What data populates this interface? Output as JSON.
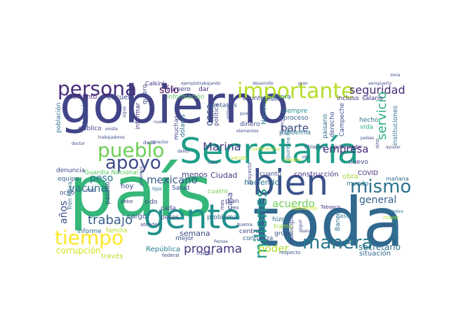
{
  "image": "word cloud",
  "words": [
    {
      "text": "gobierno",
      "color": "#414487"
    },
    {
      "text": "toda",
      "color": "#31688e"
    },
    {
      "text": "país",
      "color": "#35b779"
    },
    {
      "text": "Secretaría",
      "color": "#1f9e89"
    },
    {
      "text": "gente",
      "color": "#21918c"
    },
    {
      "text": "bien",
      "color": "#3b528b"
    },
    {
      "text": "pueblo",
      "color": "#6ece58"
    },
    {
      "text": "importante",
      "color": "#b5de2b"
    },
    {
      "text": "persona",
      "color": "#472c7a"
    },
    {
      "text": "tiempo",
      "color": "#fde725"
    },
    {
      "text": "apoyo",
      "color": "#3e4a89"
    },
    {
      "text": "mismo",
      "color": "#2c728e"
    },
    {
      "text": "manera",
      "color": "#2a788e"
    },
    {
      "text": "millones",
      "color": "#1f9a8a"
    },
    {
      "text": "seguridad",
      "color": "#472d7b"
    },
    {
      "text": "servicio",
      "color": "#26ad81"
    },
    {
      "text": "programa",
      "color": "#46337e"
    },
    {
      "text": "mexicano",
      "color": "#38588c"
    },
    {
      "text": "trabajo",
      "color": "#355f8d"
    },
    {
      "text": "Marina",
      "color": "#433d84"
    },
    {
      "text": "vacuna",
      "color": "#2d718e"
    },
    {
      "text": "empresa",
      "color": "#472a7a"
    },
    {
      "text": "parte",
      "color": "#3e4989"
    },
    {
      "text": "general",
      "color": "#355e8d"
    },
    {
      "text": "acuerdo",
      "color": "#6ccd5a"
    },
    {
      "text": "poder",
      "color": "#b0dd2f"
    },
    {
      "text": "secretario",
      "color": "#2e6f8e"
    },
    {
      "text": "sólo",
      "color": "#440154"
    },
    {
      "text": "cosa",
      "color": "#3b528b"
    },
    {
      "text": "peso",
      "color": "#2c738e"
    },
    {
      "text": "años",
      "color": "#3e4a89"
    },
    {
      "text": "corrupción",
      "color": "#d2e21b"
    },
    {
      "text": "República",
      "color": "#287c8e"
    },
    {
      "text": "haciendo",
      "color": "#2b758e"
    },
    {
      "text": "Ciudad",
      "color": "#443a83"
    },
    {
      "text": "casa",
      "color": "#3f4788"
    },
    {
      "text": "semana",
      "color": "#3d4d8a"
    },
    {
      "text": "menos",
      "color": "#404688"
    },
    {
      "text": "hoy",
      "color": "#3f4788"
    },
    {
      "text": "escuela",
      "color": "#3f4889"
    },
    {
      "text": "momento",
      "color": "#482475"
    },
    {
      "text": "información",
      "color": "#5ec962"
    },
    {
      "text": "construcción",
      "color": "#453781"
    },
    {
      "text": "COVID",
      "color": "#472f7d"
    },
    {
      "text": "situación",
      "color": "#31688e"
    },
    {
      "text": "cargo",
      "color": "#3a548c"
    },
    {
      "text": "través",
      "color": "#b8de29"
    },
    {
      "text": "mañana",
      "color": "#31688e"
    },
    {
      "text": "obra",
      "color": "#a2da37"
    },
    {
      "text": "nuevo",
      "color": "#404588"
    },
    {
      "text": "mundo",
      "color": "#29798e"
    },
    {
      "text": "hizo",
      "color": "#2e6e8e"
    },
    {
      "text": "tramo",
      "color": "#9fda3a"
    },
    {
      "text": "grupo",
      "color": "#3b528b"
    },
    {
      "text": "proceso",
      "color": "#355e8d"
    },
    {
      "text": "siempre",
      "color": "#238a8d"
    },
    {
      "text": "pandemia",
      "color": "#2a768e"
    },
    {
      "text": "Sonora",
      "color": "#2c718e"
    },
    {
      "text": "dinero",
      "color": "#3e4c8a"
    },
    {
      "text": "incluso",
      "color": "#453882"
    },
    {
      "text": "salario",
      "color": "#46307e"
    },
    {
      "text": "asunto",
      "color": "#3f4889"
    },
    {
      "text": "centavos",
      "color": "#38598c"
    },
    {
      "text": "dar",
      "color": "#46307e"
    },
    {
      "text": "instituciones",
      "color": "#2c728e"
    },
    {
      "text": "justicia",
      "color": "#238a8d"
    },
    {
      "text": "Banco",
      "color": "#2c718e"
    },
    {
      "text": "problema",
      "color": "#32658e"
    },
    {
      "text": "centro",
      "color": "#414487"
    },
    {
      "text": "mejor",
      "color": "#3b518b"
    },
    {
      "text": "plan",
      "color": "#404588"
    },
    {
      "text": "Salud",
      "color": "#3e4a89"
    },
    {
      "text": "pasado",
      "color": "#3c4f8a"
    },
    {
      "text": "informe",
      "color": "#2d708e"
    },
    {
      "text": "familia",
      "color": "#b5de2b"
    },
    {
      "text": "pesos",
      "color": "#404588"
    },
    {
      "text": "sido",
      "color": "#3f4788"
    },
    {
      "text": "denuncia",
      "color": "#3f4889"
    },
    {
      "text": "equipo",
      "color": "#355f8d"
    },
    {
      "text": "ocho",
      "color": "#3b528b"
    },
    {
      "text": "Guardia Nacional",
      "color": "#5ac864"
    },
    {
      "text": "Tren Maya",
      "color": "#2c728e"
    },
    {
      "text": "población",
      "color": "#2e6f8e"
    },
    {
      "text": "atención",
      "color": "#3d4d8a"
    },
    {
      "text": "público",
      "color": "#404588"
    },
    {
      "text": "informar",
      "color": "#46307e"
    },
    {
      "text": "quiero",
      "color": "#3f4889"
    },
    {
      "text": "número",
      "color": "#424186"
    },
    {
      "text": "Calkiní",
      "color": "#46307e"
    },
    {
      "text": "muchas",
      "color": "#3e4989"
    },
    {
      "text": "dólares",
      "color": "#2f6c8e"
    },
    {
      "text": "política",
      "color": "#3f4889"
    },
    {
      "text": "Nacional",
      "color": "#29798e"
    },
    {
      "text": "paisano",
      "color": "#2f6b8e"
    },
    {
      "text": "derecho",
      "color": "#3d4e8a"
    },
    {
      "text": "Campeche",
      "color": "#3e4a89"
    },
    {
      "text": "vida",
      "color": "#2fb47c"
    },
    {
      "text": "hecho",
      "color": "#2c728e"
    },
    {
      "text": "cuatro",
      "color": "#7ad151"
    },
    {
      "text": "hablando",
      "color": "#c8e020"
    },
    {
      "text": "municipio",
      "color": "#3e4c8a"
    },
    {
      "text": "respecto",
      "color": "#3b528b"
    },
    {
      "text": "cada",
      "color": "#404588"
    },
    {
      "text": "veces",
      "color": "#bddf26"
    },
    {
      "text": "cuanto",
      "color": "#3c4f8a"
    },
    {
      "text": "confianza",
      "color": "#33638d"
    },
    {
      "text": "mayor",
      "color": "#b5de2b"
    },
    {
      "text": "tipo",
      "color": "#2c728e"
    },
    {
      "text": "debe",
      "color": "#3f4889"
    },
    {
      "text": "atender",
      "color": "#3e4c8a"
    },
    {
      "text": "dado",
      "color": "#3e4a89"
    },
    {
      "text": "federal",
      "color": "#3e4a89"
    },
    {
      "text": "cuenta",
      "color": "#3e4c8a"
    },
    {
      "text": "buena",
      "color": "#3b528b"
    },
    {
      "text": "creo",
      "color": "#3e4989"
    },
    {
      "text": "medio",
      "color": "#c2df23"
    },
    {
      "text": "casos",
      "color": "#2a788e"
    },
    {
      "text": "conferencia",
      "color": "#bddf26"
    },
    {
      "text": "Chiapas",
      "color": "#3f4788"
    },
    {
      "text": "gobernador",
      "color": "#472c7a"
    },
    {
      "text": "proyecto",
      "color": "#404688"
    },
    {
      "text": "mes",
      "color": "#46307e"
    },
    {
      "text": "Quintana Roo",
      "color": "#29798e"
    },
    {
      "text": "Tabasco",
      "color": "#46307e"
    },
    {
      "text": "salud",
      "color": "#3e4a89"
    },
    {
      "text": "seguir",
      "color": "#3e4a89"
    },
    {
      "text": "diciembre",
      "color": "#2c728e"
    },
    {
      "text": "países",
      "color": "#3e4a89"
    },
    {
      "text": "sino",
      "color": "#3e4989"
    },
    {
      "text": "ayudar",
      "color": "#3e4a89"
    },
    {
      "text": "aeropuerto",
      "color": "#3e4a89"
    },
    {
      "text": "gran",
      "color": "#3e4a89"
    },
    {
      "text": "desarrollo",
      "color": "#3e4a89"
    },
    {
      "text": "ejemplotrabajando",
      "color": "#3e4a89"
    },
    {
      "text": "llamado",
      "color": "#3e4a89"
    },
    {
      "text": "precisamente",
      "color": "#3e4a89"
    },
    {
      "text": "pueda",
      "color": "#3e4a89"
    },
    {
      "text": "primero",
      "color": "#3e4a89"
    },
    {
      "text": "elementos",
      "color": "#3e4a89"
    },
    {
      "text": "nueva",
      "color": "#3e4a89"
    },
    {
      "text": "sigue",
      "color": "#3e4a89"
    },
    {
      "text": "trabajadores",
      "color": "#3e4a89"
    },
    {
      "text": "director",
      "color": "#3e4a89"
    },
    {
      "text": "delito",
      "color": "#3e4a89"
    },
    {
      "text": "doctor",
      "color": "#3e4a89"
    },
    {
      "text": "vez",
      "color": "#3e4a89"
    },
    {
      "text": "cabo",
      "color": "#3e4a89"
    },
    {
      "text": "INSS",
      "color": "#3e4a89"
    },
    {
      "text": "Pemex",
      "color": "#3e4a89"
    },
    {
      "text": "último",
      "color": "#3e4a89"
    },
    {
      "text": "zona",
      "color": "#3e4a89"
    },
    {
      "text": "podemos",
      "color": "#3e4a89"
    },
    {
      "text": "existe",
      "color": "#3e4a89"
    }
  ]
}
